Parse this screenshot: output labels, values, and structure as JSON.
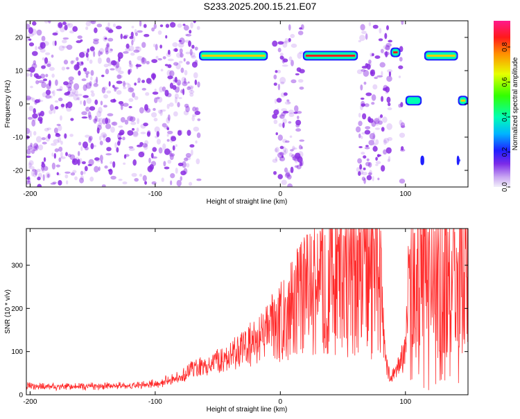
{
  "figure_title": "S233.2025.200.15.21.E07",
  "colors": {
    "blob": "#8a2be2",
    "snr_line": "#ff2a2a",
    "axis": "#000000",
    "background": "#ffffff"
  },
  "colorbar": {
    "label": "Normalized spectral amplitude",
    "ticks": [
      "0.0",
      "0.2",
      "0.4",
      "0.6",
      "0.8"
    ],
    "tick_values": [
      0.0,
      0.2,
      0.4,
      0.6,
      0.8
    ],
    "range": [
      0,
      0.95
    ]
  },
  "chart_data": [
    {
      "type": "heatmap",
      "title": "",
      "xlabel": "Height of straight line (km)",
      "ylabel": "Frequency (Hz)",
      "xlim": [
        -203,
        150
      ],
      "ylim": [
        -25,
        25
      ],
      "x_ticks": [
        "-200",
        "-100",
        "0",
        "100"
      ],
      "x_tick_values": [
        -200,
        -100,
        0,
        100
      ],
      "y_ticks": [
        "-20",
        "-10",
        "0",
        "10",
        "20"
      ],
      "y_tick_values": [
        -20,
        -10,
        0,
        10,
        20
      ],
      "noise_regions_km": [
        [
          -203,
          -65
        ],
        [
          -5,
          18
        ],
        [
          62,
          88
        ],
        [
          95,
          98
        ]
      ],
      "features": [
        {
          "x_start": -65,
          "x_end": -10,
          "freq": 14.5,
          "amplitude": 0.8
        },
        {
          "x_start": 18,
          "x_end": 62,
          "freq": 14.5,
          "amplitude": 0.9
        },
        {
          "x_start": 88,
          "x_end": 96,
          "freq": 15.5,
          "amplitude": 0.9
        },
        {
          "x_start": 100,
          "x_end": 113,
          "freq": 1.0,
          "amplitude": 0.6
        },
        {
          "x_start": 115,
          "x_end": 142,
          "freq": 14.5,
          "amplitude": 0.8
        },
        {
          "x_start": 142,
          "x_end": 150,
          "freq": 1.0,
          "amplitude": 0.8
        },
        {
          "x_start": 112,
          "x_end": 115,
          "freq": -17.0,
          "amplitude": 0.3
        },
        {
          "x_start": 141,
          "x_end": 143,
          "freq": -17.0,
          "amplitude": 0.3
        }
      ]
    },
    {
      "type": "line",
      "title": "",
      "xlabel": "Height of straight line (km)",
      "ylabel": "SNR (10 * v/v)",
      "xlim": [
        -203,
        150
      ],
      "ylim": [
        0,
        385
      ],
      "x_ticks": [
        "-200",
        "-100",
        "0",
        "100"
      ],
      "x_tick_values": [
        -200,
        -100,
        0,
        100
      ],
      "y_ticks": [
        "0",
        "100",
        "200",
        "300"
      ],
      "y_tick_values": [
        0,
        100,
        200,
        300
      ],
      "series": [
        {
          "x": [
            -203,
            -180,
            -150,
            -120,
            -100,
            -80,
            -70,
            -60,
            -40,
            -20,
            -10,
            0,
            10,
            20,
            30,
            40,
            50,
            60,
            70,
            78,
            80,
            83,
            85,
            88,
            92,
            95,
            97,
            100,
            102,
            105,
            110,
            120,
            130,
            140,
            150
          ],
          "y": [
            20,
            18,
            20,
            20,
            25,
            40,
            60,
            65,
            90,
            120,
            150,
            170,
            200,
            230,
            250,
            270,
            280,
            290,
            295,
            290,
            250,
            120,
            70,
            45,
            50,
            65,
            80,
            100,
            220,
            270,
            285,
            290,
            300,
            305,
            310
          ]
        }
      ]
    }
  ]
}
